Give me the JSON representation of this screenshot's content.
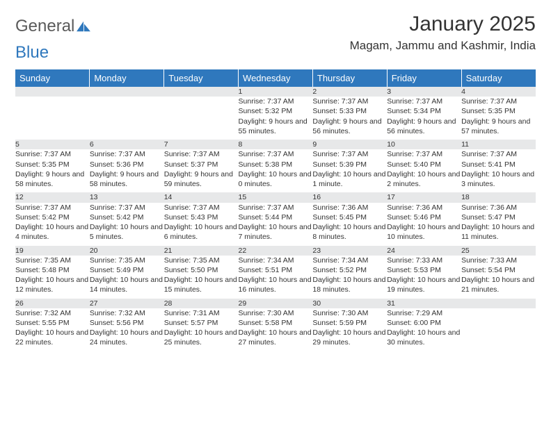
{
  "brand": {
    "word1": "General",
    "word2": "Blue"
  },
  "title": "January 2025",
  "location": "Magam, Jammu and Kashmir, India",
  "colors": {
    "header_bg": "#2f78bd",
    "header_text": "#ffffff",
    "daynum_bg": "#e7e8e9",
    "rule": "#2f78bd",
    "body_text": "#333333",
    "page_bg": "#ffffff"
  },
  "day_headers": [
    "Sunday",
    "Monday",
    "Tuesday",
    "Wednesday",
    "Thursday",
    "Friday",
    "Saturday"
  ],
  "weeks": [
    [
      {},
      {},
      {},
      {
        "n": "1",
        "sunrise": "7:37 AM",
        "sunset": "5:32 PM",
        "daylight": "9 hours and 55 minutes."
      },
      {
        "n": "2",
        "sunrise": "7:37 AM",
        "sunset": "5:33 PM",
        "daylight": "9 hours and 56 minutes."
      },
      {
        "n": "3",
        "sunrise": "7:37 AM",
        "sunset": "5:34 PM",
        "daylight": "9 hours and 56 minutes."
      },
      {
        "n": "4",
        "sunrise": "7:37 AM",
        "sunset": "5:35 PM",
        "daylight": "9 hours and 57 minutes."
      }
    ],
    [
      {
        "n": "5",
        "sunrise": "7:37 AM",
        "sunset": "5:35 PM",
        "daylight": "9 hours and 58 minutes."
      },
      {
        "n": "6",
        "sunrise": "7:37 AM",
        "sunset": "5:36 PM",
        "daylight": "9 hours and 58 minutes."
      },
      {
        "n": "7",
        "sunrise": "7:37 AM",
        "sunset": "5:37 PM",
        "daylight": "9 hours and 59 minutes."
      },
      {
        "n": "8",
        "sunrise": "7:37 AM",
        "sunset": "5:38 PM",
        "daylight": "10 hours and 0 minutes."
      },
      {
        "n": "9",
        "sunrise": "7:37 AM",
        "sunset": "5:39 PM",
        "daylight": "10 hours and 1 minute."
      },
      {
        "n": "10",
        "sunrise": "7:37 AM",
        "sunset": "5:40 PM",
        "daylight": "10 hours and 2 minutes."
      },
      {
        "n": "11",
        "sunrise": "7:37 AM",
        "sunset": "5:41 PM",
        "daylight": "10 hours and 3 minutes."
      }
    ],
    [
      {
        "n": "12",
        "sunrise": "7:37 AM",
        "sunset": "5:42 PM",
        "daylight": "10 hours and 4 minutes."
      },
      {
        "n": "13",
        "sunrise": "7:37 AM",
        "sunset": "5:42 PM",
        "daylight": "10 hours and 5 minutes."
      },
      {
        "n": "14",
        "sunrise": "7:37 AM",
        "sunset": "5:43 PM",
        "daylight": "10 hours and 6 minutes."
      },
      {
        "n": "15",
        "sunrise": "7:37 AM",
        "sunset": "5:44 PM",
        "daylight": "10 hours and 7 minutes."
      },
      {
        "n": "16",
        "sunrise": "7:36 AM",
        "sunset": "5:45 PM",
        "daylight": "10 hours and 8 minutes."
      },
      {
        "n": "17",
        "sunrise": "7:36 AM",
        "sunset": "5:46 PM",
        "daylight": "10 hours and 10 minutes."
      },
      {
        "n": "18",
        "sunrise": "7:36 AM",
        "sunset": "5:47 PM",
        "daylight": "10 hours and 11 minutes."
      }
    ],
    [
      {
        "n": "19",
        "sunrise": "7:35 AM",
        "sunset": "5:48 PM",
        "daylight": "10 hours and 12 minutes."
      },
      {
        "n": "20",
        "sunrise": "7:35 AM",
        "sunset": "5:49 PM",
        "daylight": "10 hours and 14 minutes."
      },
      {
        "n": "21",
        "sunrise": "7:35 AM",
        "sunset": "5:50 PM",
        "daylight": "10 hours and 15 minutes."
      },
      {
        "n": "22",
        "sunrise": "7:34 AM",
        "sunset": "5:51 PM",
        "daylight": "10 hours and 16 minutes."
      },
      {
        "n": "23",
        "sunrise": "7:34 AM",
        "sunset": "5:52 PM",
        "daylight": "10 hours and 18 minutes."
      },
      {
        "n": "24",
        "sunrise": "7:33 AM",
        "sunset": "5:53 PM",
        "daylight": "10 hours and 19 minutes."
      },
      {
        "n": "25",
        "sunrise": "7:33 AM",
        "sunset": "5:54 PM",
        "daylight": "10 hours and 21 minutes."
      }
    ],
    [
      {
        "n": "26",
        "sunrise": "7:32 AM",
        "sunset": "5:55 PM",
        "daylight": "10 hours and 22 minutes."
      },
      {
        "n": "27",
        "sunrise": "7:32 AM",
        "sunset": "5:56 PM",
        "daylight": "10 hours and 24 minutes."
      },
      {
        "n": "28",
        "sunrise": "7:31 AM",
        "sunset": "5:57 PM",
        "daylight": "10 hours and 25 minutes."
      },
      {
        "n": "29",
        "sunrise": "7:30 AM",
        "sunset": "5:58 PM",
        "daylight": "10 hours and 27 minutes."
      },
      {
        "n": "30",
        "sunrise": "7:30 AM",
        "sunset": "5:59 PM",
        "daylight": "10 hours and 29 minutes."
      },
      {
        "n": "31",
        "sunrise": "7:29 AM",
        "sunset": "6:00 PM",
        "daylight": "10 hours and 30 minutes."
      },
      {}
    ]
  ],
  "labels": {
    "sunrise": "Sunrise:",
    "sunset": "Sunset:",
    "daylight": "Daylight:"
  }
}
